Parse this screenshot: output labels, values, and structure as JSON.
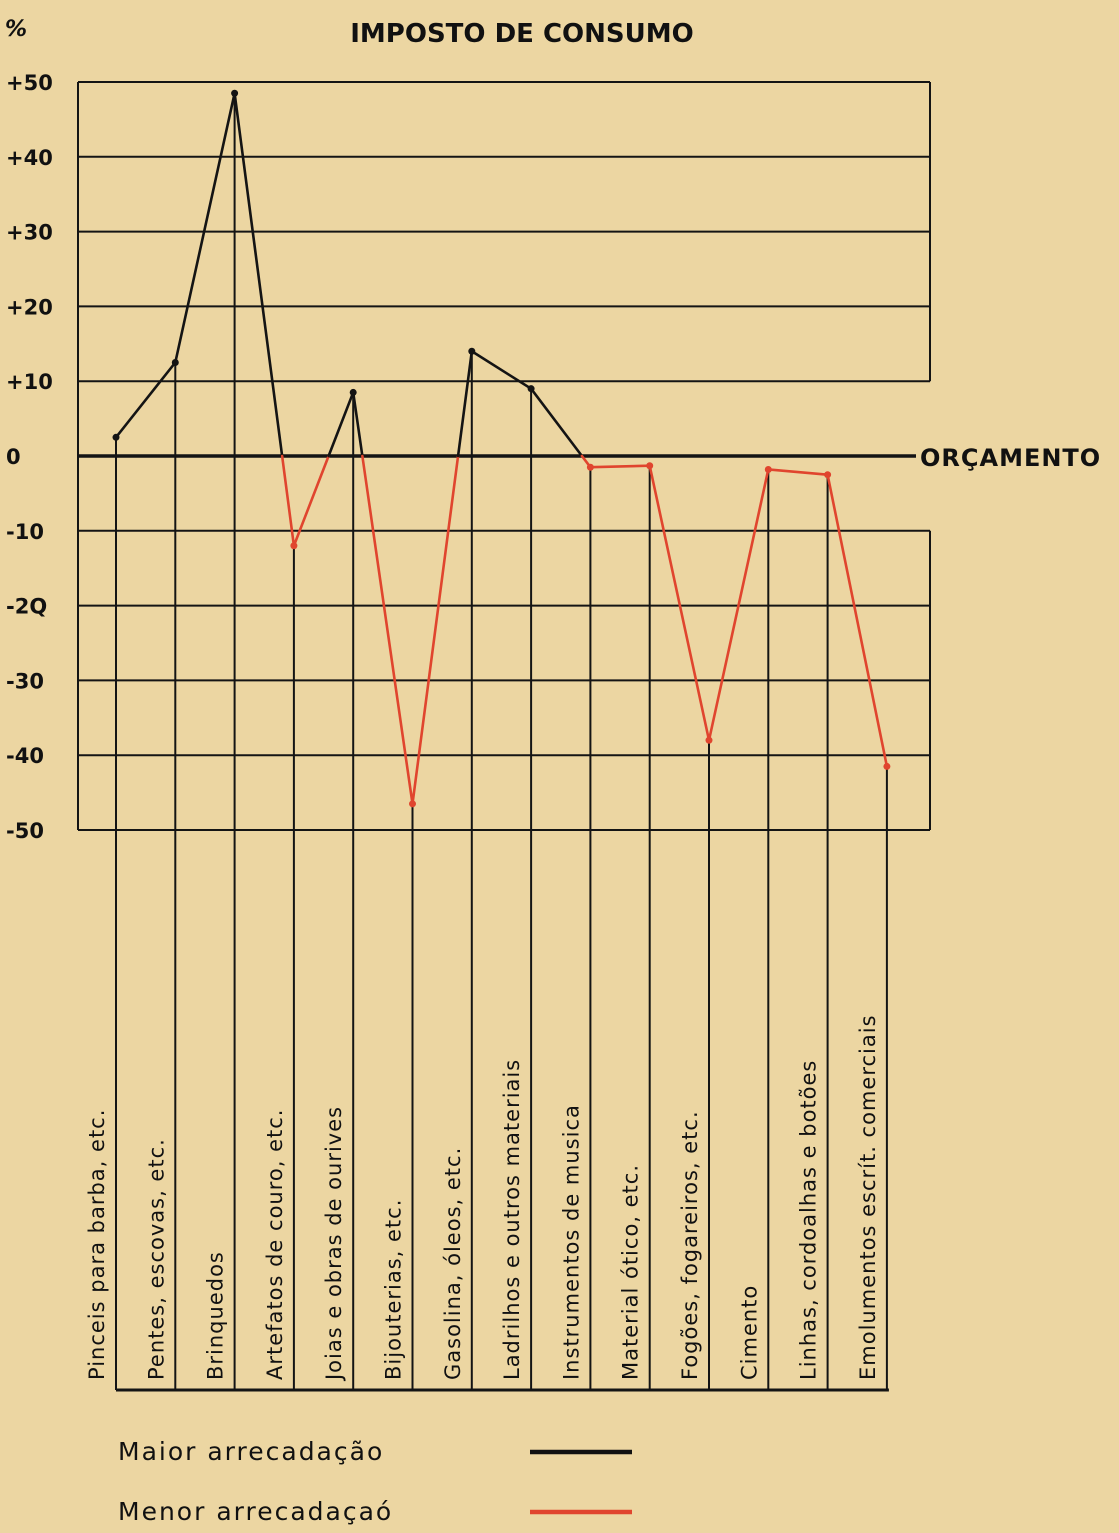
{
  "chart_data": {
    "type": "line",
    "title": "IMPOSTO DE CONSUMO",
    "unit_label": "%",
    "baseline_label": "ORÇAMENTO",
    "ylim": [
      -50,
      50
    ],
    "y_ticks": [
      {
        "value": 50,
        "label": "+50"
      },
      {
        "value": 40,
        "label": "+40"
      },
      {
        "value": 30,
        "label": "+30"
      },
      {
        "value": 20,
        "label": "+20"
      },
      {
        "value": 10,
        "label": "+10"
      },
      {
        "value": 0,
        "label": "0"
      },
      {
        "value": -10,
        "label": "-10"
      },
      {
        "value": -20,
        "label": "-2Q"
      },
      {
        "value": -30,
        "label": "-30"
      },
      {
        "value": -40,
        "label": "-40"
      },
      {
        "value": -50,
        "label": "-50"
      }
    ],
    "categories": [
      "Pinceis para barba, etc.",
      "Pentes, escovas, etc.",
      "Brinquedos",
      "Artefatos de couro, etc.",
      "Joias e obras de ourives",
      "Bijouterias, etc.",
      "Gasolina, óleos, etc.",
      "Ladrilhos e outros materiais",
      "Instrumentos de musica",
      "Material ótico, etc.",
      "Fogões, fogareiros, etc.",
      "Cimento",
      "Linhas, cordoalhas e botões",
      "Emolumentos escrít. comerciais"
    ],
    "values": [
      2.5,
      12.5,
      48.5,
      -12,
      8.5,
      -46.5,
      14,
      9,
      -1.5,
      -1.3,
      -38,
      -1.8,
      -2.5,
      -41.5
    ],
    "legend": [
      {
        "label": "Maior arrecadação",
        "color": "#111111"
      },
      {
        "label": "Menor arrecadaçaó",
        "color": "#e0452e"
      }
    ],
    "legend_position": "bottom-left",
    "grid": true
  }
}
